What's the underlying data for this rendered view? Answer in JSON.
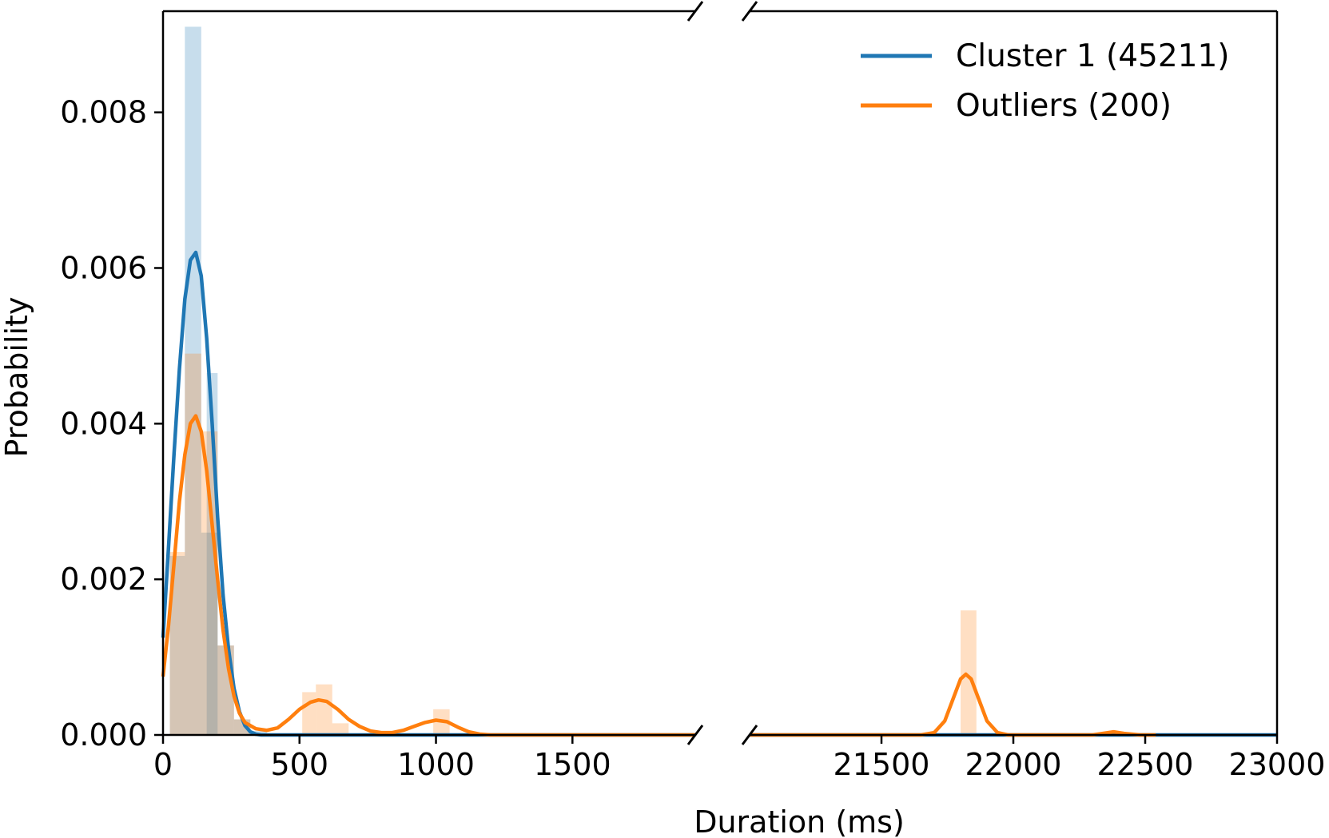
{
  "chart_data": {
    "type": "histogram",
    "xlabel": "Duration (ms)",
    "ylabel": "Probability",
    "ylim": [
      0,
      0.0093
    ],
    "yticks": [
      0.0,
      0.002,
      0.004,
      0.006,
      0.008
    ],
    "ytick_labels": [
      "0.000",
      "0.002",
      "0.004",
      "0.006",
      "0.008"
    ],
    "x_broken_axis": true,
    "x_segments": [
      {
        "xlim": [
          0,
          1950
        ],
        "xticks": [
          0,
          500,
          1000,
          1500
        ],
        "xtick_labels": [
          "0",
          "500",
          "1000",
          "1500"
        ]
      },
      {
        "xlim": [
          21000,
          23000
        ],
        "xticks": [
          21500,
          22000,
          22500,
          23000
        ],
        "xtick_labels": [
          "21500",
          "22000",
          "22500",
          "23000"
        ]
      }
    ],
    "legend_position": "top-right",
    "series": [
      {
        "name": "Cluster 1 (45211)",
        "color": "#1f77b4",
        "hist_bins": [
          {
            "x0": 25,
            "x1": 80,
            "density": 0.0023
          },
          {
            "x0": 80,
            "x1": 140,
            "density": 0.0091
          },
          {
            "x0": 140,
            "x1": 200,
            "density": 0.0026
          },
          {
            "x0": 160,
            "x1": 200,
            "density": 0.00465
          },
          {
            "x0": 200,
            "x1": 260,
            "density": 0.00115
          },
          {
            "x0": 260,
            "x1": 320,
            "density": 0.0002
          },
          {
            "x0": 320,
            "x1": 380,
            "density": 5e-05
          }
        ],
        "kde": [
          [
            0,
            0.00125
          ],
          [
            20,
            0.0024
          ],
          [
            40,
            0.0036
          ],
          [
            60,
            0.0047
          ],
          [
            80,
            0.0056
          ],
          [
            100,
            0.0061
          ],
          [
            120,
            0.0062
          ],
          [
            140,
            0.0059
          ],
          [
            160,
            0.0051
          ],
          [
            180,
            0.004
          ],
          [
            200,
            0.0028
          ],
          [
            220,
            0.0018
          ],
          [
            240,
            0.0011
          ],
          [
            260,
            0.0006
          ],
          [
            280,
            0.0003
          ],
          [
            300,
            0.00012
          ],
          [
            320,
            4e-05
          ],
          [
            340,
            1e-05
          ],
          [
            360,
            0.0
          ],
          [
            1950,
            0.0
          ],
          [
            21000,
            0.0
          ],
          [
            23000,
            0.0
          ]
        ]
      },
      {
        "name": "Outliers (200)",
        "color": "#ff7f0e",
        "hist_bins": [
          {
            "x0": 25,
            "x1": 80,
            "density": 0.00235
          },
          {
            "x0": 80,
            "x1": 140,
            "density": 0.0049
          },
          {
            "x0": 140,
            "x1": 200,
            "density": 0.0039
          },
          {
            "x0": 200,
            "x1": 260,
            "density": 0.00115
          },
          {
            "x0": 260,
            "x1": 320,
            "density": 0.0002
          },
          {
            "x0": 510,
            "x1": 560,
            "density": 0.00055
          },
          {
            "x0": 560,
            "x1": 620,
            "density": 0.00065
          },
          {
            "x0": 620,
            "x1": 680,
            "density": 0.00015
          },
          {
            "x0": 990,
            "x1": 1050,
            "density": 0.00033
          },
          {
            "x0": 21800,
            "x1": 21860,
            "density": 0.0016
          }
        ],
        "kde": [
          [
            0,
            0.00075
          ],
          [
            20,
            0.0014
          ],
          [
            40,
            0.0022
          ],
          [
            60,
            0.003
          ],
          [
            80,
            0.0036
          ],
          [
            100,
            0.004
          ],
          [
            120,
            0.0041
          ],
          [
            140,
            0.0039
          ],
          [
            160,
            0.0034
          ],
          [
            180,
            0.0027
          ],
          [
            200,
            0.002
          ],
          [
            220,
            0.00135
          ],
          [
            240,
            0.00085
          ],
          [
            260,
            0.0005
          ],
          [
            280,
            0.00028
          ],
          [
            300,
            0.00016
          ],
          [
            340,
            8e-05
          ],
          [
            380,
            6e-05
          ],
          [
            420,
            9e-05
          ],
          [
            460,
            0.0002
          ],
          [
            500,
            0.00033
          ],
          [
            540,
            0.00042
          ],
          [
            570,
            0.00045
          ],
          [
            600,
            0.00043
          ],
          [
            640,
            0.00033
          ],
          [
            680,
            0.0002
          ],
          [
            720,
            0.00011
          ],
          [
            760,
            5e-05
          ],
          [
            800,
            3e-05
          ],
          [
            840,
            3e-05
          ],
          [
            880,
            6e-05
          ],
          [
            920,
            0.00011
          ],
          [
            960,
            0.00016
          ],
          [
            1000,
            0.00019
          ],
          [
            1040,
            0.00017
          ],
          [
            1080,
            0.0001
          ],
          [
            1120,
            4e-05
          ],
          [
            1160,
            1e-05
          ],
          [
            1200,
            0.0
          ],
          [
            1950,
            0.0
          ],
          [
            21000,
            0.0
          ],
          [
            21650,
            0.0
          ],
          [
            21700,
            3e-05
          ],
          [
            21740,
            0.00018
          ],
          [
            21770,
            0.00045
          ],
          [
            21800,
            0.00072
          ],
          [
            21820,
            0.00078
          ],
          [
            21840,
            0.00072
          ],
          [
            21870,
            0.00045
          ],
          [
            21900,
            0.00018
          ],
          [
            21940,
            3e-05
          ],
          [
            21980,
            0.0
          ],
          [
            22300,
            0.0
          ],
          [
            22360,
            3e-05
          ],
          [
            22380,
            4e-05
          ],
          [
            22420,
            2e-05
          ],
          [
            22480,
            0.0
          ],
          [
            22540,
            0.0
          ]
        ]
      }
    ]
  }
}
